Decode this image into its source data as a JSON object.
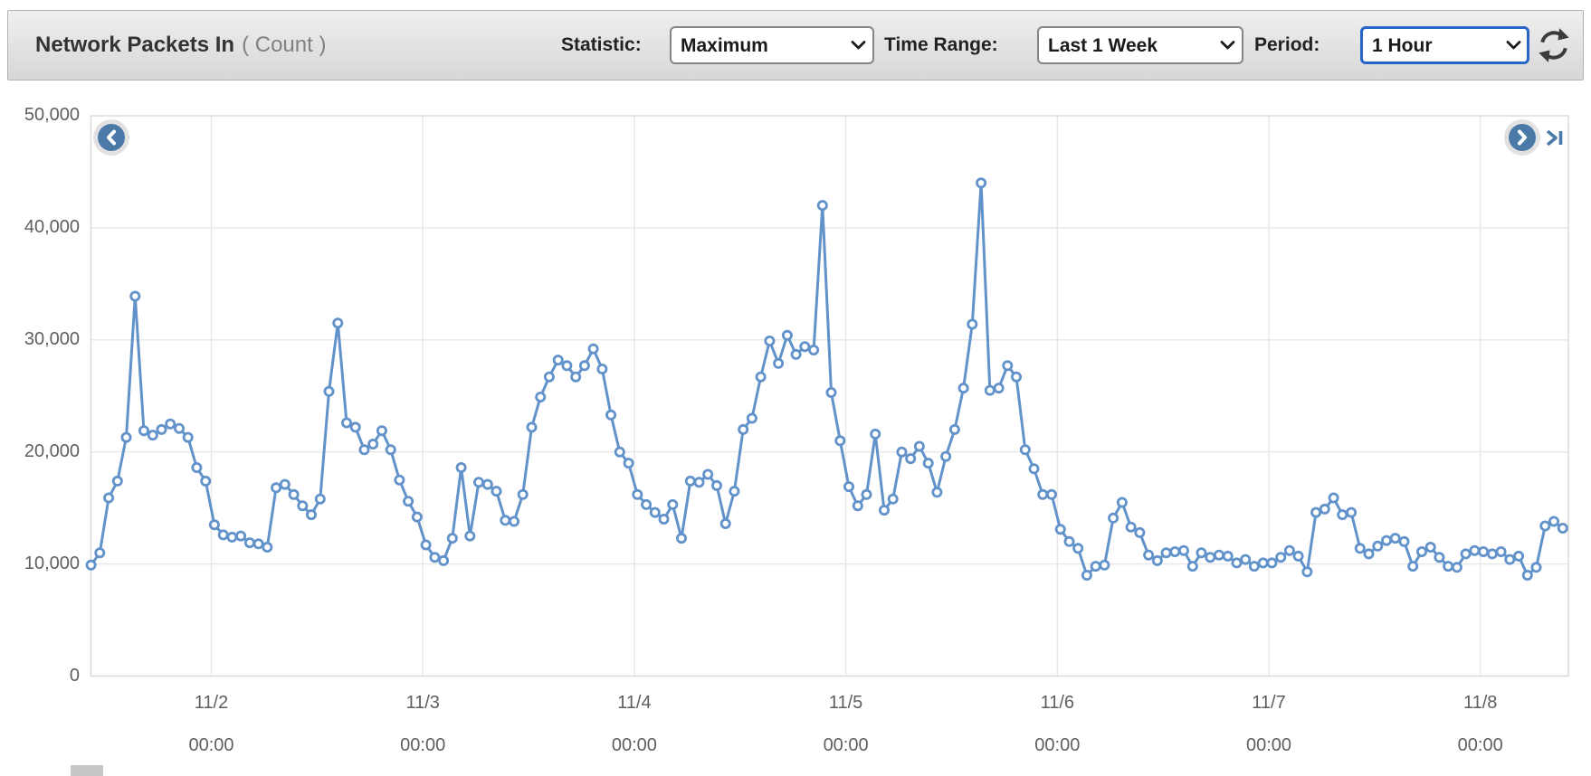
{
  "header": {
    "title": "Network Packets In",
    "unit_text": "( Count )",
    "statistic_label": "Statistic:",
    "statistic_value": "Maximum",
    "time_range_label": "Time Range:",
    "time_range_value": "Last 1 Week",
    "period_label": "Period:",
    "period_value": "1 Hour"
  },
  "icons": {
    "refresh": "refresh-icon",
    "select_chevron": "chevron-down-icon",
    "prev": "chevron-left-icon",
    "next": "chevron-right-icon",
    "skip_end": "skip-to-end-icon"
  },
  "colors": {
    "line": "#6292ca",
    "nav_button": "#4b79a8",
    "grid": "#e7e7e7",
    "plot_border": "#d7d7d7",
    "focus_border": "#2766c8"
  },
  "chart_data": {
    "type": "line",
    "title": "Network Packets In",
    "ylabel": "Count",
    "statistic": "Maximum",
    "time_range": "Last 1 Week",
    "period": "1 Hour",
    "start": "11/1 11:00",
    "interval_hours": 1,
    "ylim": [
      0,
      50000
    ],
    "grid": true,
    "legend_position": "none",
    "y_ticks": [
      {
        "label": "50,000",
        "value": 50000
      },
      {
        "label": "40,000",
        "value": 40000
      },
      {
        "label": "30,000",
        "value": 30000
      },
      {
        "label": "20,000",
        "value": 20000
      },
      {
        "label": "10,000",
        "value": 10000
      },
      {
        "label": "0",
        "value": 0
      }
    ],
    "x_ticks": [
      {
        "date": "11/2",
        "time": "00:00"
      },
      {
        "date": "11/3",
        "time": "00:00"
      },
      {
        "date": "11/4",
        "time": "00:00"
      },
      {
        "date": "11/5",
        "time": "00:00"
      },
      {
        "date": "11/6",
        "time": "00:00"
      },
      {
        "date": "11/7",
        "time": "00:00"
      },
      {
        "date": "11/8",
        "time": "00:00"
      }
    ],
    "series": [
      {
        "name": "Network Packets In (Maximum)",
        "values": [
          9900,
          11000,
          15900,
          17400,
          21300,
          33900,
          21900,
          21500,
          22000,
          22500,
          22100,
          21300,
          18600,
          17400,
          13500,
          12600,
          12400,
          12500,
          11900,
          11800,
          11500,
          16800,
          17100,
          16200,
          15200,
          14400,
          15800,
          25400,
          31500,
          22600,
          22200,
          20200,
          20700,
          21900,
          20200,
          17500,
          15600,
          14200,
          11700,
          10600,
          10300,
          12300,
          18600,
          12500,
          17300,
          17100,
          16500,
          13900,
          13800,
          16200,
          22200,
          24900,
          26700,
          28200,
          27700,
          26700,
          27700,
          29200,
          27400,
          23300,
          20000,
          19000,
          16200,
          15300,
          14600,
          14000,
          15300,
          12300,
          17400,
          17300,
          18000,
          17000,
          13600,
          16500,
          22000,
          23000,
          26700,
          29900,
          27900,
          30400,
          28700,
          29400,
          29100,
          42000,
          25300,
          21000,
          16900,
          15200,
          16200,
          21600,
          14800,
          15800,
          20000,
          19400,
          20500,
          19000,
          16400,
          19600,
          22000,
          25700,
          31400,
          44000,
          25500,
          25700,
          27700,
          26700,
          20200,
          18500,
          16200,
          16200,
          13100,
          12000,
          11400,
          9000,
          9800,
          9900,
          14100,
          15500,
          13300,
          12800,
          10800,
          10300,
          11000,
          11100,
          11200,
          9800,
          11000,
          10600,
          10800,
          10700,
          10100,
          10400,
          9800,
          10100,
          10100,
          10600,
          11200,
          10700,
          9300,
          14600,
          14900,
          15900,
          14400,
          14600,
          11400,
          10900,
          11600,
          12100,
          12300,
          12000,
          9800,
          11100,
          11500,
          10600,
          9800,
          9700,
          10900,
          11200,
          11100,
          10900,
          11100,
          10400,
          10700,
          9000,
          9700,
          13400,
          13800,
          13200
        ]
      }
    ]
  }
}
